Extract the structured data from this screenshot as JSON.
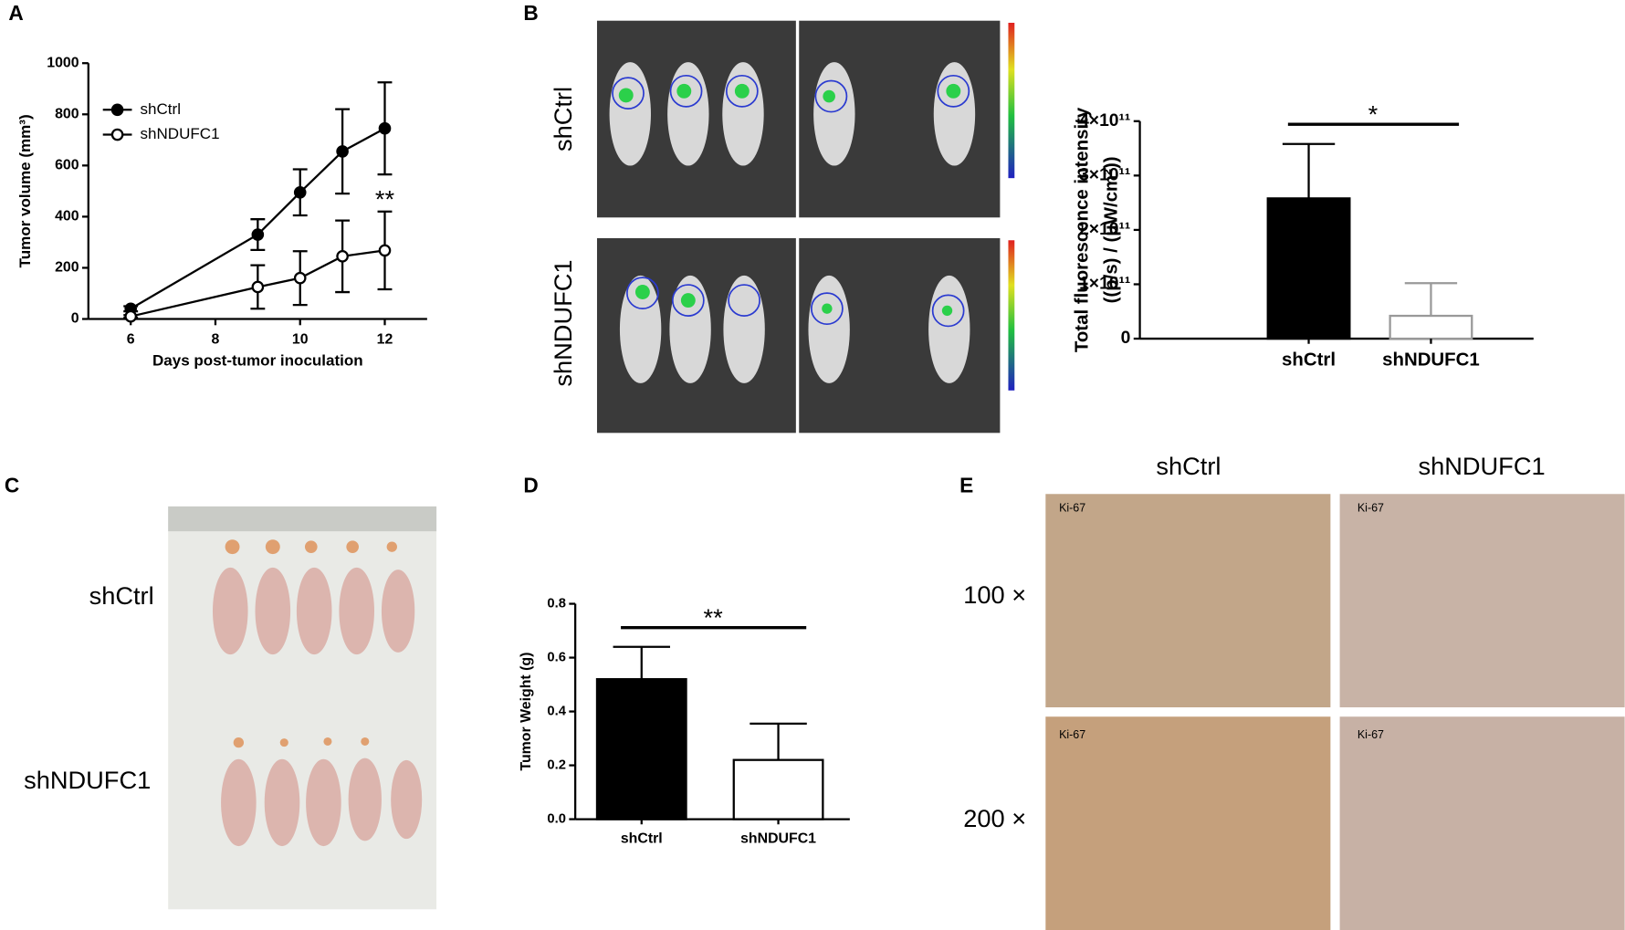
{
  "panel_labels": [
    "A",
    "B",
    "C",
    "D",
    "E"
  ],
  "chart_data": [
    {
      "type": "line",
      "ylabel": "Tumor volume (mm³)",
      "xlabel": "Days post-tumor inoculation",
      "x": [
        6,
        9,
        10,
        11,
        12
      ],
      "series": [
        {
          "name": "shCtrl",
          "color": "#000000",
          "fill": "#000000",
          "values": [
            40,
            330,
            495,
            655,
            745
          ],
          "errors": [
            10,
            60,
            90,
            165,
            180
          ]
        },
        {
          "name": "shNDUFC1",
          "color": "#000000",
          "fill": "#ffffff",
          "values": [
            10,
            125,
            160,
            245,
            268
          ],
          "errors": [
            5,
            85,
            105,
            140,
            152
          ]
        }
      ],
      "xlim": [
        5,
        13
      ],
      "xticks": [
        6,
        8,
        10,
        12
      ],
      "ylim": [
        0,
        1000
      ],
      "yticks": [
        0,
        200,
        400,
        600,
        800,
        1000
      ],
      "legend": "upper left",
      "annotation": "**"
    },
    {
      "type": "bar",
      "ylabel": [
        "Total fluorescence intensity",
        "((p/s) / (μW/cm²))"
      ],
      "categories": [
        "shCtrl",
        "shNDUFC1"
      ],
      "values": [
        258000000000,
        42000000000
      ],
      "errors": [
        100000000000,
        60000000000
      ],
      "colors": [
        "#000000",
        "#ffffff"
      ],
      "edge_colors": [
        "#000000",
        "#999999"
      ],
      "ylim": [
        0,
        400000000000
      ],
      "yticks": [
        0,
        {
          "value": 100000000000,
          "label": "1×10¹¹"
        },
        {
          "value": 200000000000,
          "label": "2×10¹¹"
        },
        {
          "value": 300000000000,
          "label": "3×10¹¹"
        },
        {
          "value": 400000000000,
          "label": "4×10¹¹"
        }
      ],
      "annotation": "*"
    },
    {
      "type": "bar",
      "ylabel": "Tumor Weight (g)",
      "categories": [
        "shCtrl",
        "shNDUFC1"
      ],
      "values": [
        0.52,
        0.22
      ],
      "errors": [
        0.12,
        0.135
      ],
      "colors": [
        "#000000",
        "#ffffff"
      ],
      "edge_colors": [
        "#000000",
        "#000000"
      ],
      "ylim": [
        0,
        0.8
      ],
      "yticks": [
        {
          "value": 0,
          "label": "0.0"
        },
        0.2,
        0.4,
        0.6,
        0.8
      ],
      "annotation": "**"
    }
  ],
  "panel_b": {
    "groups": [
      "shCtrl",
      "shNDUFC1"
    ]
  },
  "panel_c": {
    "groups": [
      "shCtrl",
      "shNDUFC1"
    ]
  },
  "panel_e": {
    "columns": [
      "shCtrl",
      "shNDUFC1"
    ],
    "rows": [
      "100 ×",
      "200 ×"
    ],
    "stain": "Ki-67"
  }
}
